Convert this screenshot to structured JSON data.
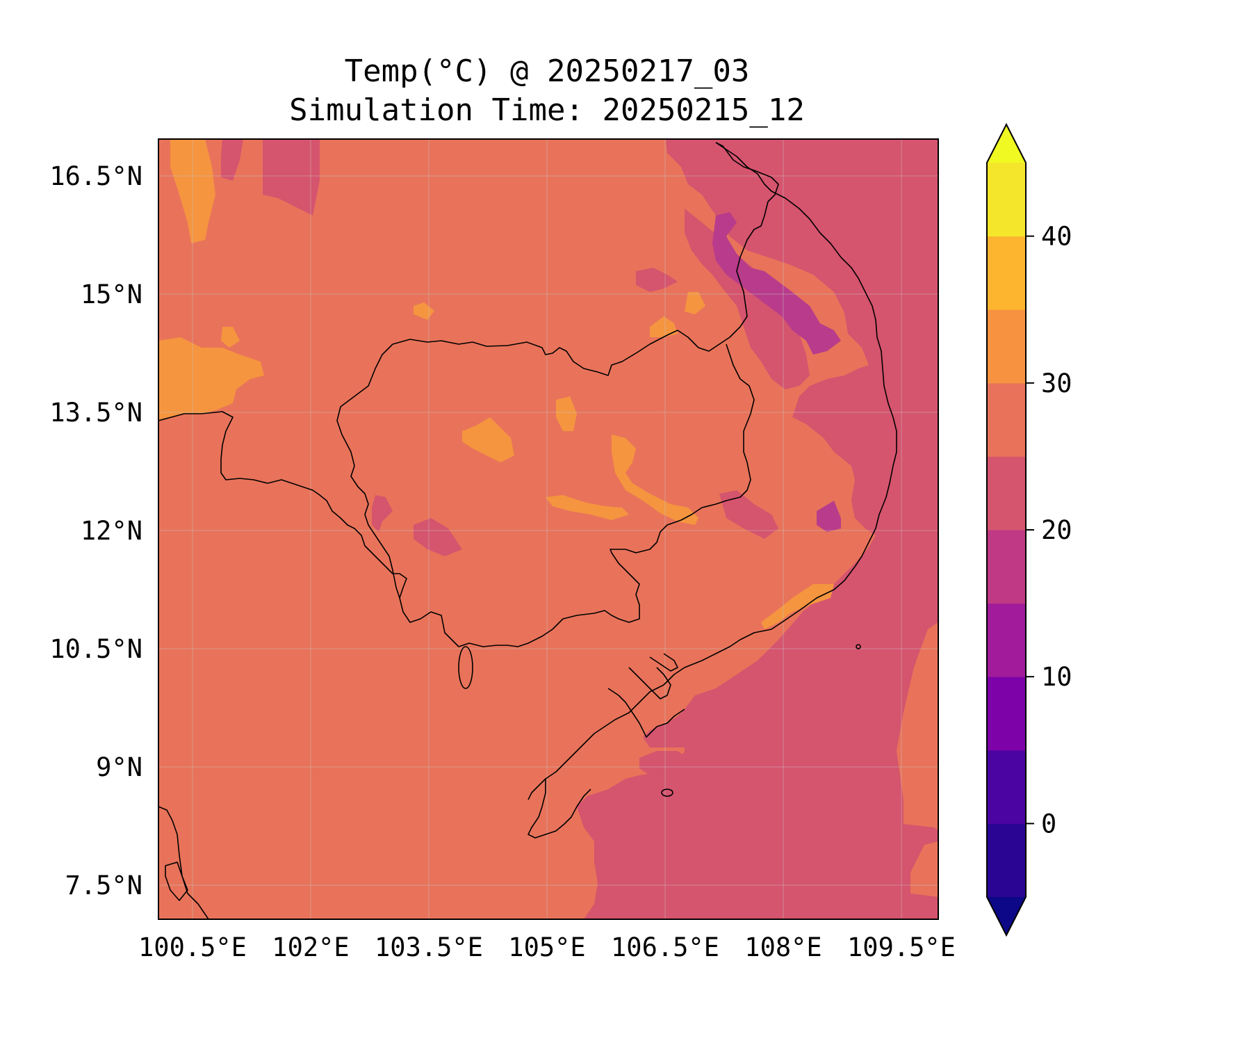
{
  "title": {
    "line1": "Temp(°C) @ 20250217_03",
    "line2": "Simulation Time: 20250215_12"
  },
  "map": {
    "lon_range": [
      100.0,
      110.0
    ],
    "lat_range": [
      7.0,
      17.0
    ],
    "x_ticks": [
      "100.5°E",
      "102°E",
      "103.5°E",
      "105°E",
      "106.5°E",
      "108°E",
      "109.5°E"
    ],
    "y_ticks": [
      "16.5°N",
      "15°N",
      "13.5°N",
      "12°N",
      "10.5°N",
      "9°N",
      "7.5°N"
    ],
    "grid": true,
    "fill_colors": {
      "land_25_30": "#e8735a",
      "sea_20_25": "#d5546e",
      "warm_30_35": "#f59540",
      "cool_15_20": "#b83c8b"
    }
  },
  "colorbar": {
    "min": -5,
    "max": 45,
    "extend": "both",
    "ticks": [
      "0",
      "10",
      "20",
      "30",
      "40"
    ],
    "bins": [
      {
        "range": [
          -5,
          0
        ],
        "color": "#2a0593"
      },
      {
        "range": [
          0,
          5
        ],
        "color": "#4b03a1"
      },
      {
        "range": [
          5,
          10
        ],
        "color": "#7d03a8"
      },
      {
        "range": [
          10,
          15
        ],
        "color": "#a11b9b"
      },
      {
        "range": [
          15,
          20
        ],
        "color": "#bf3984"
      },
      {
        "range": [
          20,
          25
        ],
        "color": "#d5546e"
      },
      {
        "range": [
          25,
          30
        ],
        "color": "#e8735a"
      },
      {
        "range": [
          30,
          35
        ],
        "color": "#f79340"
      },
      {
        "range": [
          35,
          40
        ],
        "color": "#fdb42f"
      },
      {
        "range": [
          40,
          45
        ],
        "color": "#f4e62a"
      }
    ],
    "under_color": "#0d0887",
    "over_color": "#f0f921"
  }
}
